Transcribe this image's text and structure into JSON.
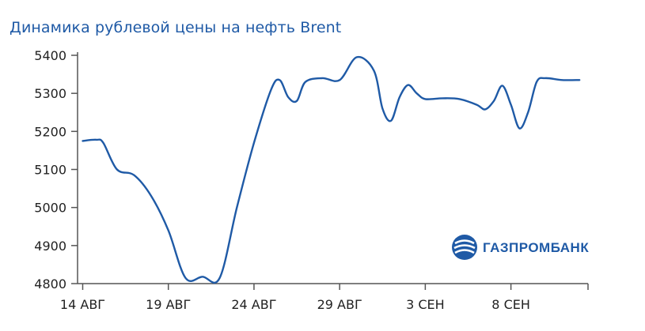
{
  "chart_data": {
    "type": "line",
    "title": "Динамика рублевой цены на нефть Brent",
    "xlabel": "",
    "ylabel": "",
    "ylim": [
      4800,
      5400
    ],
    "yticks": [
      4800,
      4900,
      5000,
      5100,
      5200,
      5300,
      5400
    ],
    "xticks": [
      {
        "index": 0,
        "label": "14 АВГ"
      },
      {
        "index": 5,
        "label": "19 АВГ"
      },
      {
        "index": 10,
        "label": "24 АВГ"
      },
      {
        "index": 15,
        "label": "29 АВГ"
      },
      {
        "index": 20,
        "label": "3 СЕН"
      },
      {
        "index": 25,
        "label": "8 СЕН"
      }
    ],
    "x_index_range": [
      -0.3,
      29.5
    ],
    "grid": false,
    "series": [
      {
        "color": "#1f5aa6",
        "points": [
          [
            0,
            5175
          ],
          [
            0.8,
            5178
          ],
          [
            1.2,
            5170
          ],
          [
            2,
            5100
          ],
          [
            3,
            5085
          ],
          [
            4,
            5030
          ],
          [
            5,
            4940
          ],
          [
            6,
            4815
          ],
          [
            7,
            4818
          ],
          [
            8,
            4815
          ],
          [
            9,
            5000
          ],
          [
            10,
            5170
          ],
          [
            11,
            5310
          ],
          [
            11.5,
            5335
          ],
          [
            12,
            5290
          ],
          [
            12.5,
            5280
          ],
          [
            13,
            5330
          ],
          [
            14,
            5340
          ],
          [
            15,
            5335
          ],
          [
            16,
            5395
          ],
          [
            17,
            5360
          ],
          [
            17.5,
            5260
          ],
          [
            18,
            5228
          ],
          [
            18.5,
            5290
          ],
          [
            19,
            5322
          ],
          [
            19.5,
            5300
          ],
          [
            20,
            5285
          ],
          [
            21,
            5287
          ],
          [
            22,
            5285
          ],
          [
            23,
            5270
          ],
          [
            23.5,
            5258
          ],
          [
            24,
            5280
          ],
          [
            24.5,
            5320
          ],
          [
            25,
            5270
          ],
          [
            25.5,
            5208
          ],
          [
            26,
            5250
          ],
          [
            26.5,
            5330
          ],
          [
            27,
            5340
          ],
          [
            28,
            5335
          ],
          [
            29,
            5335
          ]
        ]
      }
    ]
  },
  "logo": {
    "text": "ГАЗПРОМБАНК",
    "color": "#1f5aa6",
    "icon": "gazprombank-logo-icon"
  }
}
